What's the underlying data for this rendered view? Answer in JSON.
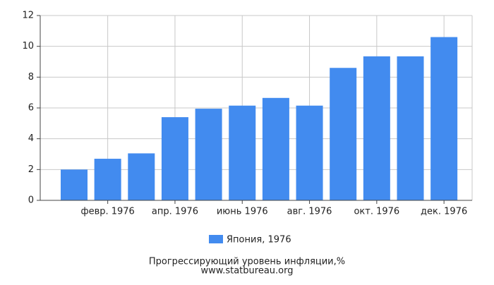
{
  "chart_data": {
    "type": "bar",
    "title": "Прогрессирующий уровень инфляции,%",
    "subtitle": "www.statbureau.org",
    "categories": [
      null,
      "февр. 1976",
      null,
      "апр. 1976",
      null,
      "июнь 1976",
      null,
      "авг. 1976",
      null,
      "окт. 1976",
      null,
      "дек. 1976"
    ],
    "series": [
      {
        "name": "Япония, 1976",
        "color": "#428bef",
        "values": [
          2.0,
          2.7,
          3.05,
          5.4,
          5.95,
          6.15,
          6.65,
          6.15,
          8.6,
          9.35,
          9.35,
          10.6
        ]
      }
    ],
    "ylim": [
      0,
      12
    ],
    "yticks": [
      0,
      2,
      4,
      6,
      8,
      10,
      12
    ],
    "grid": true,
    "legend": "bottom"
  }
}
